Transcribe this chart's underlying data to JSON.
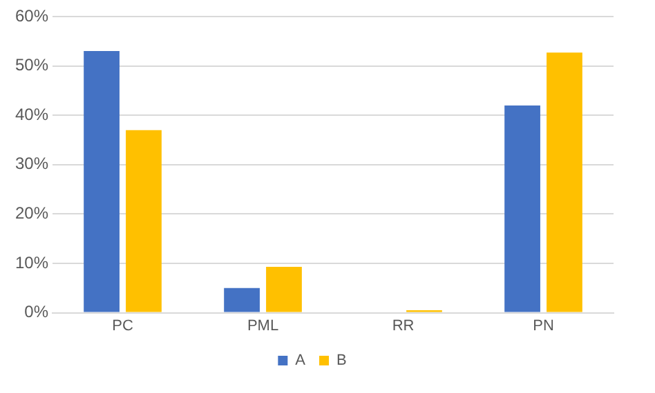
{
  "chart_data": {
    "type": "bar",
    "categories": [
      "PC",
      "PML",
      "RR",
      "PN"
    ],
    "series": [
      {
        "name": "A",
        "color": "#4472c4",
        "values": [
          53,
          5,
          0,
          42
        ]
      },
      {
        "name": "B",
        "color": "#ffc000",
        "values": [
          37,
          9.3,
          0.5,
          52.7
        ]
      }
    ],
    "ylim": [
      0,
      60
    ],
    "yticks": [
      {
        "value": 0,
        "label": "0%"
      },
      {
        "value": 10,
        "label": "10%"
      },
      {
        "value": 20,
        "label": "20%"
      },
      {
        "value": 30,
        "label": "30%"
      },
      {
        "value": 40,
        "label": "40%"
      },
      {
        "value": 50,
        "label": "50%"
      },
      {
        "value": 60,
        "label": "60%"
      }
    ],
    "grid": "y",
    "legend": "bottom"
  }
}
